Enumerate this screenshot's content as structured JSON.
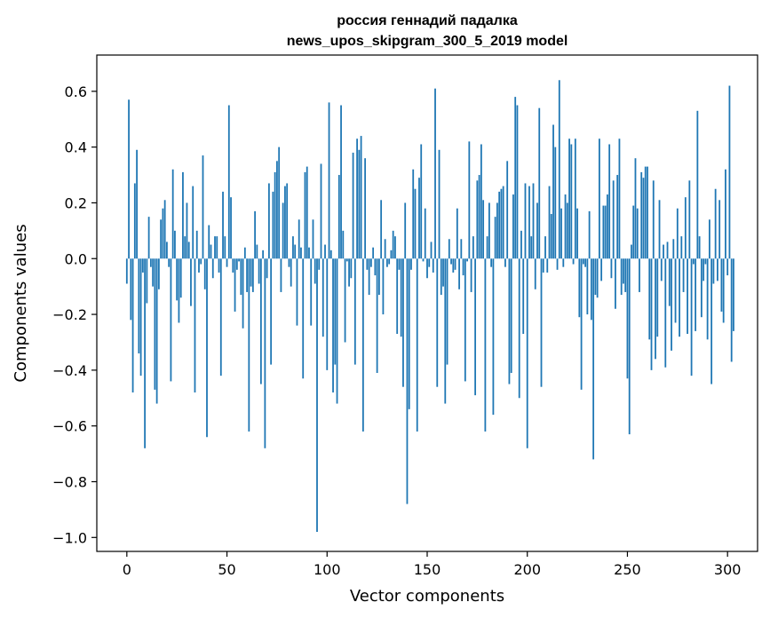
{
  "chart_data": {
    "type": "bar",
    "title_line1": "россия геннадий падалка",
    "title_line2": "news_upos_skipgram_300_5_2019 model",
    "xlabel": "Vector components",
    "ylabel": "Components values",
    "xlim": [
      -15,
      315
    ],
    "ylim": [
      -1.05,
      0.73
    ],
    "xticks": [
      0,
      50,
      100,
      150,
      200,
      250,
      300
    ],
    "yticks": [
      0.6,
      0.4,
      0.2,
      0.0,
      -0.2,
      -0.4,
      -0.6,
      -0.8,
      -1.0
    ],
    "ytick_labels": [
      "0.6",
      "0.4",
      "0.2",
      "0.0",
      "−0.2",
      "−0.4",
      "−0.6",
      "−0.8",
      "−1.0"
    ],
    "bar_color": "#1f77b4",
    "grid": false,
    "values": [
      -0.09,
      0.57,
      -0.22,
      -0.48,
      0.27,
      0.39,
      -0.34,
      -0.42,
      -0.05,
      -0.68,
      -0.16,
      0.15,
      -0.03,
      -0.1,
      -0.47,
      -0.52,
      -0.11,
      0.14,
      0.18,
      0.21,
      0.06,
      -0.03,
      -0.44,
      0.32,
      0.1,
      -0.15,
      -0.23,
      -0.14,
      0.31,
      0.08,
      0.2,
      0.06,
      -0.17,
      0.26,
      -0.48,
      0.1,
      -0.05,
      -0.02,
      0.37,
      -0.11,
      -0.64,
      0.12,
      0.05,
      -0.07,
      0.08,
      0.08,
      -0.05,
      -0.42,
      0.24,
      0.08,
      -0.03,
      0.55,
      0.22,
      -0.05,
      -0.19,
      -0.04,
      -0.01,
      -0.13,
      -0.25,
      0.04,
      -0.12,
      -0.62,
      -0.1,
      -0.12,
      0.17,
      0.05,
      -0.09,
      -0.45,
      0.03,
      -0.68,
      -0.07,
      0.27,
      -0.38,
      0.24,
      0.31,
      0.35,
      0.4,
      -0.12,
      0.2,
      0.26,
      0.27,
      -0.03,
      -0.1,
      0.08,
      0.05,
      -0.24,
      0.14,
      0.04,
      -0.43,
      0.31,
      0.33,
      0.04,
      -0.24,
      0.14,
      -0.09,
      -0.98,
      -0.04,
      0.34,
      -0.28,
      0.05,
      -0.4,
      0.56,
      0.03,
      -0.48,
      -0.38,
      -0.52,
      0.3,
      0.55,
      0.1,
      -0.3,
      -0.01,
      -0.1,
      -0.07,
      0.38,
      -0.38,
      0.43,
      0.39,
      0.44,
      -0.62,
      0.36,
      -0.04,
      -0.13,
      -0.03,
      0.04,
      -0.06,
      -0.41,
      -0.13,
      0.21,
      -0.2,
      0.07,
      -0.03,
      -0.02,
      0.03,
      0.1,
      0.08,
      -0.27,
      -0.04,
      -0.28,
      -0.46,
      0.2,
      -0.88,
      -0.54,
      -0.04,
      0.32,
      0.25,
      -0.62,
      0.29,
      0.41,
      -0.01,
      0.18,
      -0.07,
      -0.03,
      0.06,
      -0.05,
      0.61,
      -0.46,
      0.39,
      -0.13,
      -0.1,
      -0.52,
      -0.38,
      0.07,
      -0.02,
      -0.05,
      -0.04,
      0.18,
      -0.11,
      0.07,
      -0.06,
      -0.44,
      -0.01,
      0.42,
      -0.12,
      0.08,
      -0.49,
      0.28,
      0.3,
      0.41,
      0.21,
      -0.62,
      0.08,
      0.2,
      -0.03,
      -0.56,
      0.15,
      0.2,
      0.24,
      0.25,
      0.26,
      -0.03,
      0.35,
      -0.45,
      -0.41,
      0.23,
      0.58,
      0.55,
      -0.5,
      0.1,
      -0.27,
      0.27,
      -0.68,
      0.26,
      0.08,
      0.27,
      -0.11,
      0.2,
      0.54,
      -0.46,
      -0.05,
      0.08,
      -0.05,
      0.26,
      0.16,
      0.48,
      0.4,
      -0.04,
      0.64,
      0.18,
      -0.03,
      0.23,
      0.2,
      0.43,
      0.41,
      -0.02,
      0.43,
      0.18,
      -0.21,
      -0.47,
      -0.02,
      -0.03,
      -0.2,
      0.17,
      -0.22,
      -0.72,
      -0.13,
      -0.14,
      0.43,
      -0.08,
      0.19,
      0.19,
      0.23,
      0.41,
      -0.07,
      0.28,
      -0.18,
      0.3,
      0.43,
      -0.13,
      -0.09,
      -0.12,
      -0.43,
      -0.63,
      0.05,
      0.19,
      0.36,
      0.18,
      -0.12,
      0.31,
      0.29,
      0.33,
      0.33,
      -0.29,
      -0.4,
      0.28,
      -0.36,
      -0.28,
      0.21,
      -0.08,
      0.05,
      -0.39,
      0.06,
      -0.17,
      -0.33,
      0.07,
      -0.23,
      0.18,
      -0.28,
      0.08,
      -0.12,
      0.22,
      -0.27,
      0.28,
      -0.42,
      -0.02,
      -0.26,
      0.53,
      0.08,
      -0.21,
      -0.08,
      -0.02,
      -0.29,
      0.14,
      -0.45,
      -0.09,
      0.25,
      -0.08,
      0.21,
      -0.19,
      -0.23,
      0.32,
      -0.06,
      0.62,
      -0.37,
      -0.26
    ]
  }
}
